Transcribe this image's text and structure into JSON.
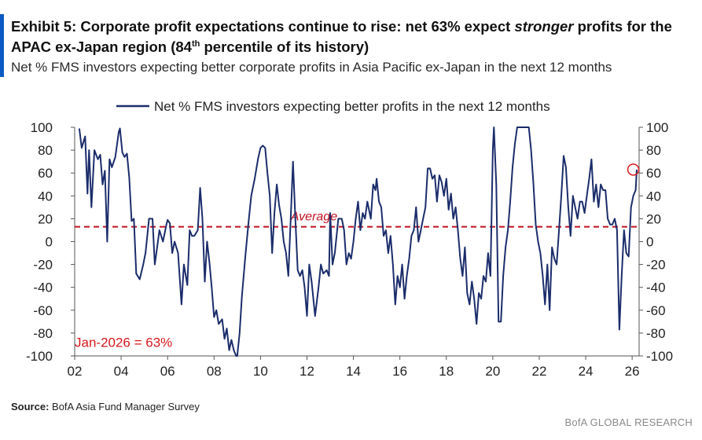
{
  "header": {
    "title_part1": "Exhibit 5: Corporate profit expectations continue to rise: net 63% expect ",
    "title_em": "stronger",
    "title_part2": " profits for the APAC ex-Japan region (84",
    "title_sup": "th",
    "title_part3": " percentile of its history)",
    "subtitle": "Net % FMS investors expecting better corporate profits in Asia Pacific ex-Japan in the next 12 months"
  },
  "footer": {
    "source_label": "Source:",
    "source_text": " BofA Asia Fund Manager Survey",
    "brand": "BofA GLOBAL RESEARCH"
  },
  "chart_data": {
    "type": "line",
    "title": "Net % FMS investors expecting better corporate profits in Asia Pacific ex-Japan in the next 12 months",
    "ylim": [
      -100,
      100
    ],
    "xlim": [
      2002,
      2026.3
    ],
    "yticks": [
      "100",
      "80",
      "60",
      "40",
      "20",
      "0",
      "-20",
      "-40",
      "-60",
      "-80",
      "-100"
    ],
    "ytick_values": [
      100,
      80,
      60,
      40,
      20,
      0,
      -20,
      -40,
      -60,
      -80,
      -100
    ],
    "xtick_labels": [
      "02",
      "04",
      "06",
      "08",
      "10",
      "12",
      "14",
      "16",
      "18",
      "20",
      "22",
      "24",
      "26"
    ],
    "xtick_years": [
      2002,
      2004,
      2006,
      2008,
      2010,
      2012,
      2014,
      2016,
      2018,
      2020,
      2022,
      2024,
      2026
    ],
    "series": [
      {
        "name": "Net % FMS investors expecting better profits in the next 12 months",
        "color": "#1b2d6b",
        "points": [
          [
            2002.2,
            99
          ],
          [
            2002.3,
            82
          ],
          [
            2002.45,
            92
          ],
          [
            2002.55,
            42
          ],
          [
            2002.62,
            80
          ],
          [
            2002.72,
            30
          ],
          [
            2002.85,
            80
          ],
          [
            2003.0,
            72
          ],
          [
            2003.1,
            76
          ],
          [
            2003.2,
            50
          ],
          [
            2003.3,
            62
          ],
          [
            2003.4,
            0
          ],
          [
            2003.5,
            72
          ],
          [
            2003.6,
            65
          ],
          [
            2003.75,
            74
          ],
          [
            2003.9,
            96
          ],
          [
            2003.95,
            99
          ],
          [
            2004.05,
            78
          ],
          [
            2004.15,
            74
          ],
          [
            2004.25,
            77
          ],
          [
            2004.35,
            56
          ],
          [
            2004.45,
            18
          ],
          [
            2004.55,
            20
          ],
          [
            2004.65,
            -28
          ],
          [
            2004.8,
            -33
          ],
          [
            2004.95,
            -20
          ],
          [
            2005.05,
            -10
          ],
          [
            2005.2,
            20
          ],
          [
            2005.35,
            20
          ],
          [
            2005.45,
            -20
          ],
          [
            2005.55,
            -5
          ],
          [
            2005.65,
            10
          ],
          [
            2005.8,
            0
          ],
          [
            2005.95,
            15
          ],
          [
            2006.0,
            19
          ],
          [
            2006.1,
            16
          ],
          [
            2006.2,
            -10
          ],
          [
            2006.3,
            0
          ],
          [
            2006.45,
            -10
          ],
          [
            2006.6,
            -55
          ],
          [
            2006.7,
            -20
          ],
          [
            2006.85,
            -38
          ],
          [
            2006.95,
            10
          ],
          [
            2007.05,
            5
          ],
          [
            2007.15,
            5
          ],
          [
            2007.3,
            10
          ],
          [
            2007.4,
            47
          ],
          [
            2007.5,
            20
          ],
          [
            2007.6,
            -35
          ],
          [
            2007.7,
            0
          ],
          [
            2007.8,
            -18
          ],
          [
            2007.9,
            -40
          ],
          [
            2008.0,
            -66
          ],
          [
            2008.1,
            -60
          ],
          [
            2008.2,
            -72
          ],
          [
            2008.35,
            -68
          ],
          [
            2008.45,
            -85
          ],
          [
            2008.55,
            -76
          ],
          [
            2008.65,
            -95
          ],
          [
            2008.75,
            -86
          ],
          [
            2008.85,
            -95
          ],
          [
            2008.95,
            -100
          ],
          [
            2009.0,
            -100
          ],
          [
            2009.1,
            -80
          ],
          [
            2009.2,
            -48
          ],
          [
            2009.35,
            -12
          ],
          [
            2009.5,
            20
          ],
          [
            2009.6,
            40
          ],
          [
            2009.75,
            55
          ],
          [
            2009.9,
            73
          ],
          [
            2010.0,
            82
          ],
          [
            2010.1,
            84
          ],
          [
            2010.2,
            82
          ],
          [
            2010.3,
            60
          ],
          [
            2010.4,
            40
          ],
          [
            2010.5,
            -10
          ],
          [
            2010.6,
            25
          ],
          [
            2010.7,
            50
          ],
          [
            2010.8,
            32
          ],
          [
            2010.9,
            20
          ],
          [
            2011.0,
            0
          ],
          [
            2011.1,
            -10
          ],
          [
            2011.2,
            -30
          ],
          [
            2011.3,
            20
          ],
          [
            2011.4,
            70
          ],
          [
            2011.5,
            20
          ],
          [
            2011.6,
            -25
          ],
          [
            2011.7,
            -30
          ],
          [
            2011.8,
            -25
          ],
          [
            2011.9,
            -40
          ],
          [
            2012.0,
            -65
          ],
          [
            2012.1,
            -20
          ],
          [
            2012.2,
            -35
          ],
          [
            2012.35,
            -65
          ],
          [
            2012.5,
            -40
          ],
          [
            2012.6,
            -20
          ],
          [
            2012.7,
            -28
          ],
          [
            2012.85,
            -25
          ],
          [
            2012.95,
            -30
          ],
          [
            2013.0,
            25
          ],
          [
            2013.1,
            -20
          ],
          [
            2013.2,
            -10
          ],
          [
            2013.35,
            20
          ],
          [
            2013.5,
            20
          ],
          [
            2013.6,
            10
          ],
          [
            2013.7,
            -20
          ],
          [
            2013.8,
            -10
          ],
          [
            2013.9,
            -15
          ],
          [
            2014.0,
            0
          ],
          [
            2014.1,
            20
          ],
          [
            2014.2,
            35
          ],
          [
            2014.3,
            10
          ],
          [
            2014.4,
            25
          ],
          [
            2014.5,
            20
          ],
          [
            2014.6,
            35
          ],
          [
            2014.75,
            20
          ],
          [
            2014.85,
            50
          ],
          [
            2014.95,
            45
          ],
          [
            2015.0,
            55
          ],
          [
            2015.1,
            35
          ],
          [
            2015.2,
            30
          ],
          [
            2015.3,
            5
          ],
          [
            2015.4,
            10
          ],
          [
            2015.5,
            -10
          ],
          [
            2015.6,
            5
          ],
          [
            2015.7,
            -20
          ],
          [
            2015.8,
            -55
          ],
          [
            2015.9,
            -30
          ],
          [
            2016.0,
            -40
          ],
          [
            2016.1,
            -20
          ],
          [
            2016.2,
            -50
          ],
          [
            2016.3,
            -30
          ],
          [
            2016.4,
            -15
          ],
          [
            2016.5,
            5
          ],
          [
            2016.6,
            10
          ],
          [
            2016.7,
            30
          ],
          [
            2016.8,
            0
          ],
          [
            2016.9,
            10
          ],
          [
            2017.0,
            20
          ],
          [
            2017.1,
            30
          ],
          [
            2017.2,
            64
          ],
          [
            2017.3,
            64
          ],
          [
            2017.4,
            55
          ],
          [
            2017.5,
            58
          ],
          [
            2017.6,
            35
          ],
          [
            2017.7,
            58
          ],
          [
            2017.8,
            52
          ],
          [
            2017.9,
            40
          ],
          [
            2018.0,
            55
          ],
          [
            2018.1,
            28
          ],
          [
            2018.2,
            42
          ],
          [
            2018.3,
            20
          ],
          [
            2018.4,
            30
          ],
          [
            2018.5,
            10
          ],
          [
            2018.6,
            -15
          ],
          [
            2018.7,
            -30
          ],
          [
            2018.8,
            -5
          ],
          [
            2018.9,
            -45
          ],
          [
            2019.0,
            -55
          ],
          [
            2019.1,
            -35
          ],
          [
            2019.2,
            -50
          ],
          [
            2019.3,
            -72
          ],
          [
            2019.4,
            -45
          ],
          [
            2019.5,
            -50
          ],
          [
            2019.6,
            -30
          ],
          [
            2019.7,
            -35
          ],
          [
            2019.8,
            -10
          ],
          [
            2019.9,
            -30
          ],
          [
            2020.0,
            80
          ],
          [
            2020.05,
            100
          ],
          [
            2020.15,
            50
          ],
          [
            2020.25,
            -70
          ],
          [
            2020.35,
            -70
          ],
          [
            2020.45,
            -30
          ],
          [
            2020.55,
            -5
          ],
          [
            2020.65,
            10
          ],
          [
            2020.75,
            35
          ],
          [
            2020.85,
            65
          ],
          [
            2020.95,
            85
          ],
          [
            2021.05,
            100
          ],
          [
            2021.2,
            100
          ],
          [
            2021.4,
            100
          ],
          [
            2021.55,
            100
          ],
          [
            2021.65,
            80
          ],
          [
            2021.75,
            50
          ],
          [
            2021.85,
            15
          ],
          [
            2021.95,
            0
          ],
          [
            2022.05,
            -10
          ],
          [
            2022.15,
            -30
          ],
          [
            2022.25,
            -55
          ],
          [
            2022.35,
            -20
          ],
          [
            2022.45,
            -60
          ],
          [
            2022.55,
            -5
          ],
          [
            2022.65,
            -15
          ],
          [
            2022.75,
            -20
          ],
          [
            2022.85,
            10
          ],
          [
            2022.95,
            40
          ],
          [
            2023.05,
            75
          ],
          [
            2023.15,
            65
          ],
          [
            2023.25,
            30
          ],
          [
            2023.35,
            5
          ],
          [
            2023.45,
            40
          ],
          [
            2023.55,
            30
          ],
          [
            2023.65,
            20
          ],
          [
            2023.75,
            35
          ],
          [
            2023.85,
            35
          ],
          [
            2023.95,
            25
          ],
          [
            2024.05,
            40
          ],
          [
            2024.15,
            55
          ],
          [
            2024.25,
            72
          ],
          [
            2024.35,
            35
          ],
          [
            2024.45,
            50
          ],
          [
            2024.55,
            30
          ],
          [
            2024.65,
            50
          ],
          [
            2024.75,
            45
          ],
          [
            2024.85,
            45
          ],
          [
            2024.95,
            20
          ],
          [
            2025.05,
            15
          ],
          [
            2025.15,
            15
          ],
          [
            2025.25,
            20
          ],
          [
            2025.35,
            10
          ],
          [
            2025.45,
            -77
          ],
          [
            2025.55,
            -30
          ],
          [
            2025.65,
            10
          ],
          [
            2025.75,
            -10
          ],
          [
            2025.85,
            -13
          ],
          [
            2025.95,
            30
          ],
          [
            2026.05,
            40
          ],
          [
            2026.15,
            45
          ],
          [
            2026.2,
            63
          ]
        ]
      }
    ],
    "average": {
      "label": "Average",
      "value": 13,
      "color": "#c1121f"
    },
    "callout": {
      "label": "Jan-2026 = 63%",
      "x": 2026.05,
      "y": 63,
      "color": "#d7191c"
    },
    "legend": "top-center"
  }
}
